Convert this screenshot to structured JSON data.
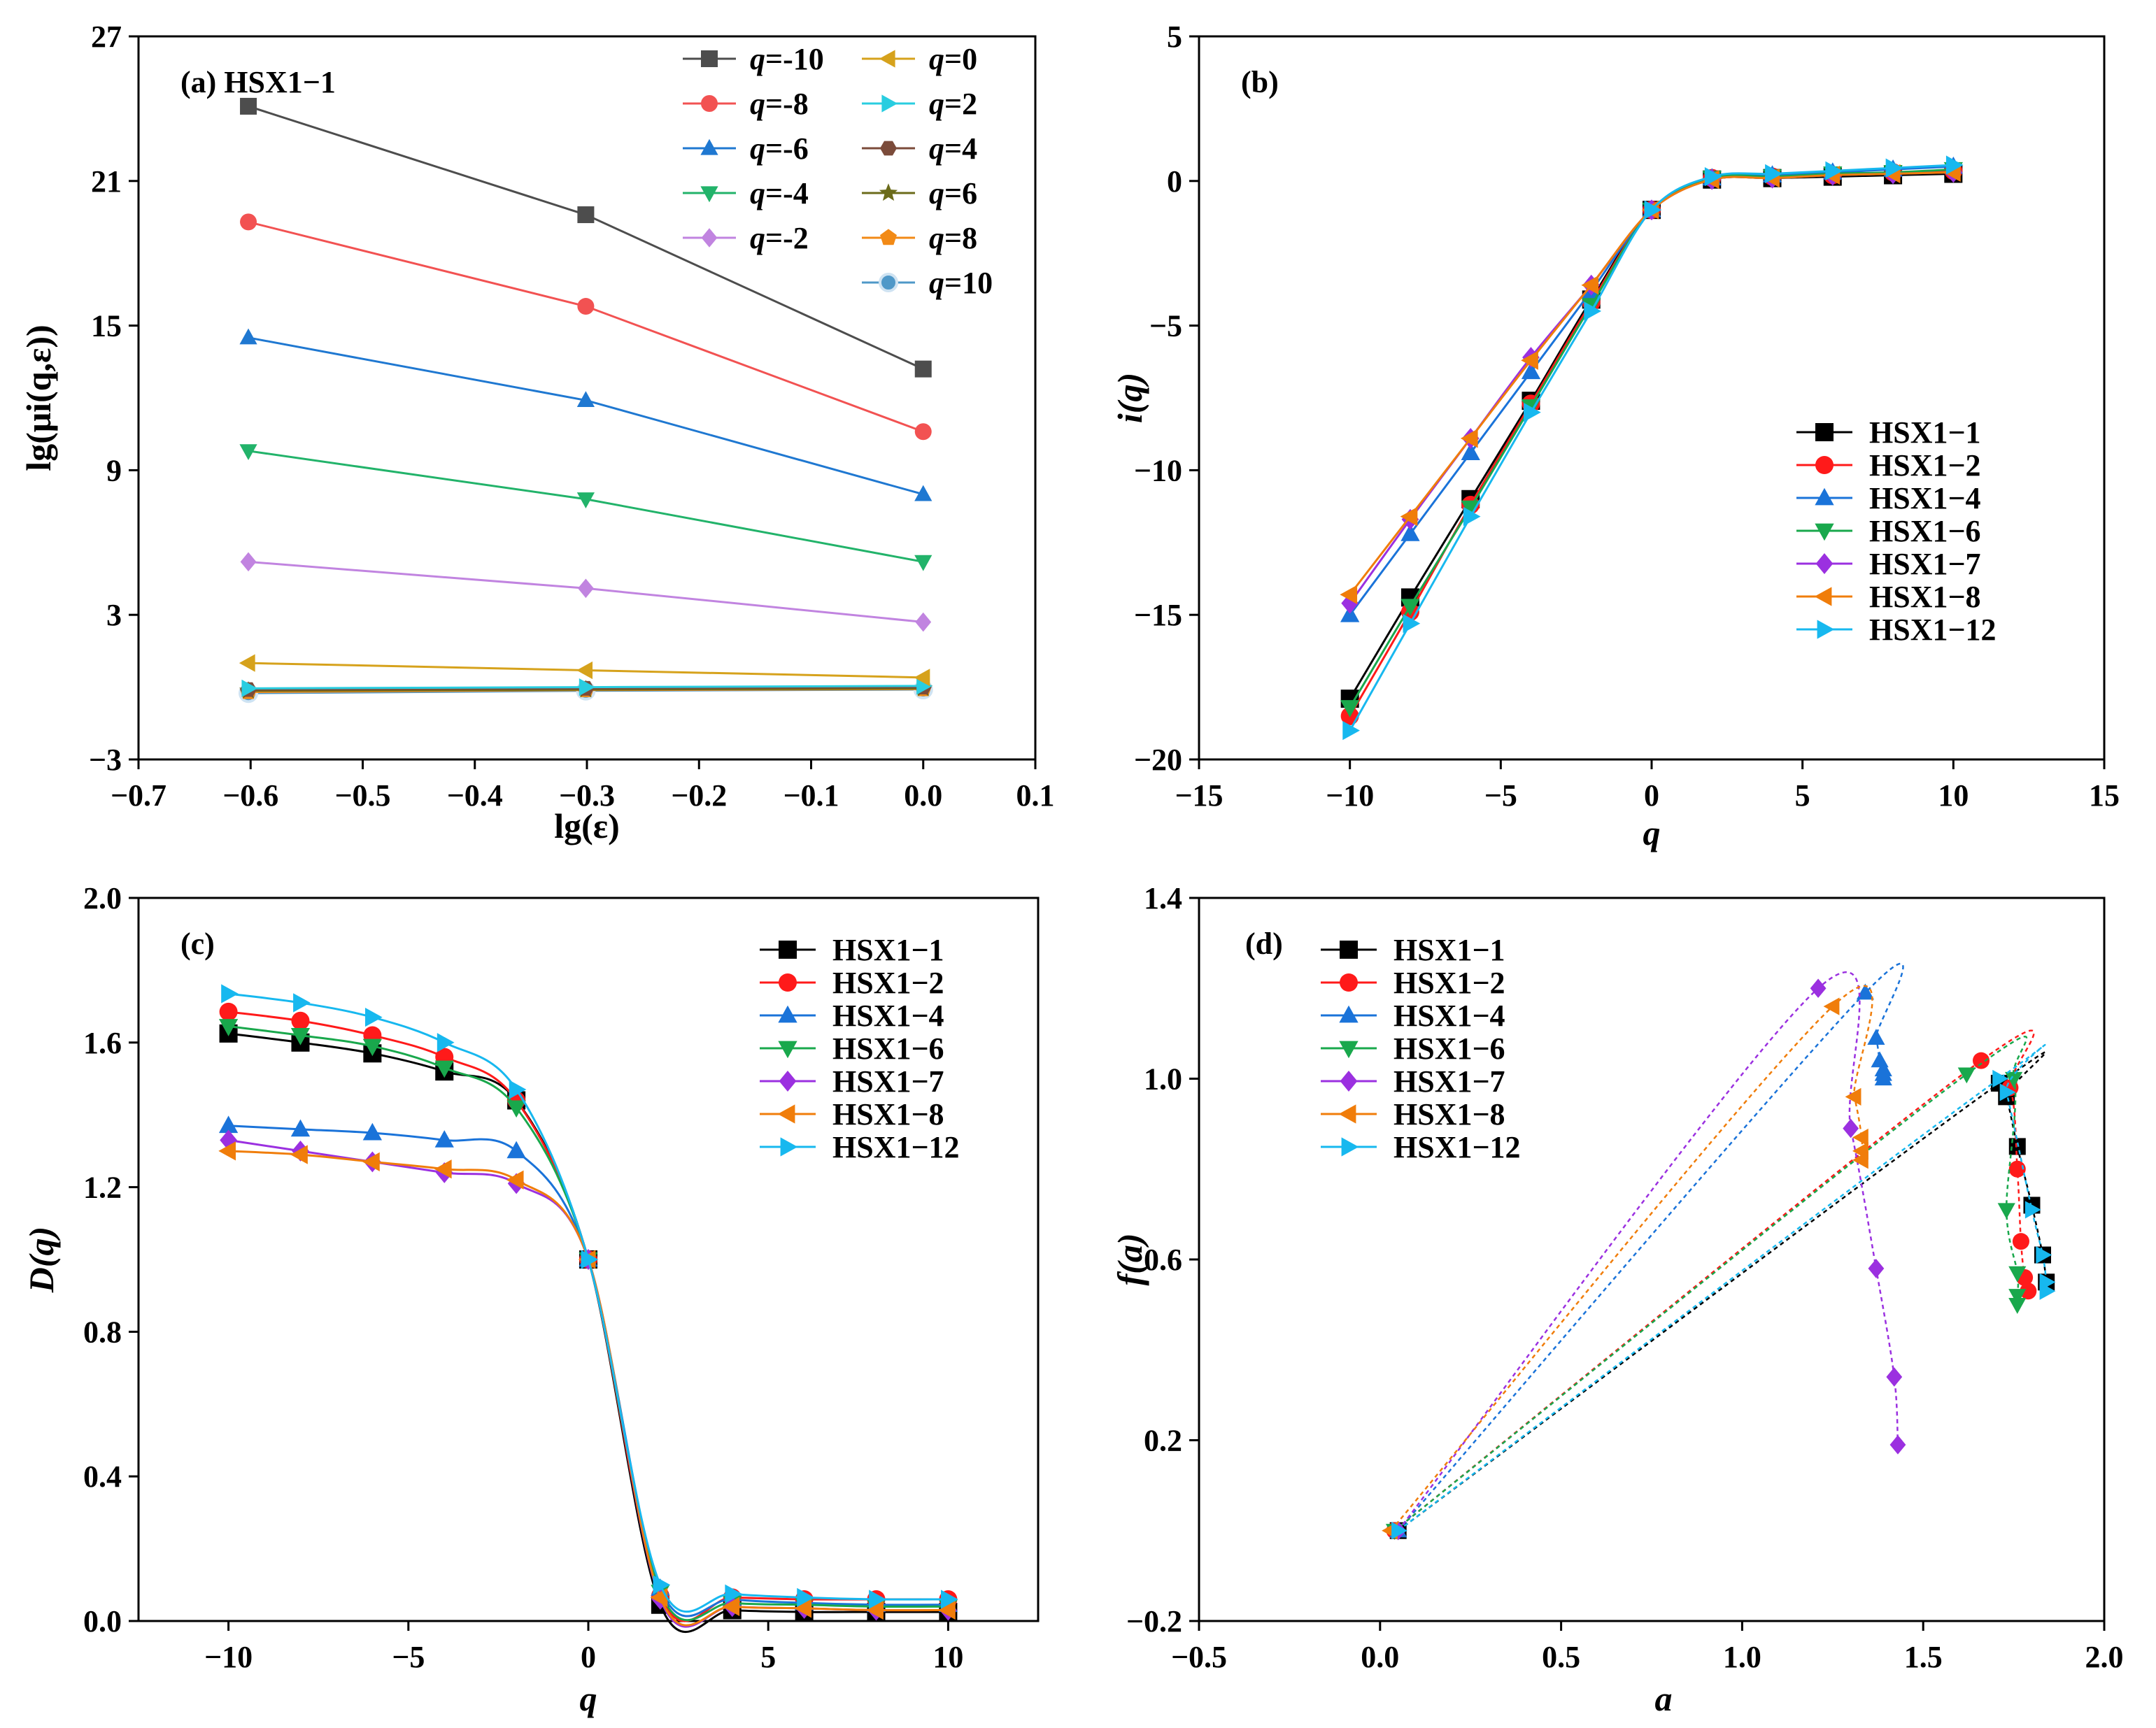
{
  "colors": {
    "HSX1-1": "#000000",
    "HSX1-2": "#ff1a1a",
    "HSX1-4": "#1a73d9",
    "HSX1-6": "#19a84c",
    "HSX1-7": "#9b30e0",
    "HSX1-8": "#f07d0a",
    "HSX1-12": "#17b8ef",
    "q-10": "#4d4d4d",
    "q-8": "#f25252",
    "q-6": "#1f78d1",
    "q-4": "#22b36a",
    "q-2": "#c184e0",
    "q0": "#d6a21c",
    "q2": "#29cde0",
    "q4": "#7b4b3a",
    "q6": "#6b6b1a",
    "q8": "#f28a16",
    "q10": "#4f98c8"
  },
  "chart_data": [
    {
      "id": "a",
      "type": "line",
      "panel_label": "(a) HSX1−1",
      "xlabel": "lg(ε)",
      "ylabel": "lg(μi(q,ε))",
      "xlim": [
        -0.7,
        0.1
      ],
      "ylim": [
        -3,
        27
      ],
      "xticks": [
        "−0.7",
        "−0.6",
        "−0.5",
        "−0.4",
        "−0.3",
        "−0.2",
        "−0.1",
        "0.0",
        "0.1"
      ],
      "yticks": [
        "−3",
        "3",
        "9",
        "15",
        "21",
        "27"
      ],
      "x": [
        -0.602,
        -0.301,
        0.0
      ],
      "series": [
        {
          "name": "q=-10",
          "label": "-10",
          "marker": "square",
          "color": "#4d4d4d",
          "values": [
            24.1,
            19.6,
            13.2
          ]
        },
        {
          "name": "q=-8",
          "label": "-8",
          "marker": "circle",
          "color": "#f25252",
          "values": [
            19.3,
            15.8,
            10.6
          ]
        },
        {
          "name": "q=-6",
          "label": "-6",
          "marker": "triangle-up",
          "color": "#1f78d1",
          "values": [
            14.5,
            11.9,
            8.0
          ]
        },
        {
          "name": "q=-4",
          "label": "-4",
          "marker": "triangle-down",
          "color": "#22b36a",
          "values": [
            9.8,
            7.8,
            5.2
          ]
        },
        {
          "name": "q=-2",
          "label": "-2",
          "marker": "diamond",
          "color": "#c184e0",
          "values": [
            5.2,
            4.1,
            2.7
          ]
        },
        {
          "name": "q=0",
          "label": "0",
          "marker": "triangle-left",
          "color": "#d6a21c",
          "values": [
            1.0,
            0.7,
            0.4
          ]
        },
        {
          "name": "q=2",
          "label": "2",
          "marker": "triangle-right",
          "color": "#29cde0",
          "values": [
            -0.05,
            0.0,
            0.05
          ]
        },
        {
          "name": "q=4",
          "label": "4",
          "marker": "hexagon",
          "color": "#7b4b3a",
          "values": [
            -0.1,
            -0.05,
            0.0
          ]
        },
        {
          "name": "q=6",
          "label": "6",
          "marker": "star",
          "color": "#6b6b1a",
          "values": [
            -0.15,
            -0.1,
            -0.05
          ]
        },
        {
          "name": "q=8",
          "label": "8",
          "marker": "pentagon",
          "color": "#f28a16",
          "values": [
            -0.2,
            -0.12,
            -0.08
          ]
        },
        {
          "name": "q=10",
          "label": "10",
          "marker": "sphere",
          "color": "#4f98c8",
          "values": [
            -0.25,
            -0.15,
            -0.1
          ]
        }
      ]
    },
    {
      "id": "b",
      "type": "line",
      "panel_label": "(b)",
      "xlabel": "q",
      "ylabel": "i(q)",
      "xlim": [
        -15,
        15
      ],
      "ylim": [
        -20,
        5
      ],
      "xticks": [
        "−15",
        "−10",
        "−5",
        "0",
        "5",
        "10",
        "15"
      ],
      "yticks": [
        "−20",
        "−15",
        "−10",
        "−5",
        "0",
        "5"
      ],
      "x": [
        -10,
        -8,
        -6,
        -4,
        -2,
        0,
        2,
        4,
        6,
        8,
        10
      ],
      "series": [
        {
          "name": "HSX1−1",
          "marker": "square",
          "color": "#000000",
          "values": [
            -17.9,
            -14.4,
            -11.0,
            -7.6,
            -4.1,
            -1.0,
            0.05,
            0.1,
            0.15,
            0.2,
            0.25
          ]
        },
        {
          "name": "HSX1−2",
          "marker": "circle",
          "color": "#ff1a1a",
          "values": [
            -18.5,
            -14.9,
            -11.2,
            -7.7,
            -4.2,
            -1.0,
            0.1,
            0.15,
            0.2,
            0.3,
            0.35
          ]
        },
        {
          "name": "HSX1−4",
          "marker": "triangle-up",
          "color": "#1a73d9",
          "values": [
            -15.0,
            -12.2,
            -9.4,
            -6.6,
            -3.8,
            -1.0,
            0.1,
            0.2,
            0.3,
            0.4,
            0.5
          ]
        },
        {
          "name": "HSX1−6",
          "marker": "triangle-down",
          "color": "#19a84c",
          "values": [
            -18.2,
            -14.7,
            -11.3,
            -7.8,
            -4.3,
            -1.0,
            0.1,
            0.15,
            0.25,
            0.3,
            0.4
          ]
        },
        {
          "name": "HSX1−7",
          "marker": "diamond",
          "color": "#9b30e0",
          "values": [
            -14.6,
            -11.7,
            -8.9,
            -6.1,
            -3.6,
            -1.0,
            0.05,
            0.1,
            0.2,
            0.25,
            0.3
          ]
        },
        {
          "name": "HSX1−8",
          "marker": "triangle-left",
          "color": "#f07d0a",
          "values": [
            -14.3,
            -11.6,
            -8.9,
            -6.2,
            -3.6,
            -1.0,
            0.05,
            0.1,
            0.2,
            0.25,
            0.3
          ]
        },
        {
          "name": "HSX1−12",
          "marker": "triangle-right",
          "color": "#17b8ef",
          "values": [
            -19.0,
            -15.3,
            -11.6,
            -8.0,
            -4.5,
            -1.0,
            0.15,
            0.25,
            0.35,
            0.45,
            0.55
          ]
        }
      ]
    },
    {
      "id": "c",
      "type": "line",
      "panel_label": "(c)",
      "xlabel": "q",
      "ylabel": "D(q)",
      "xlim": [
        -12.5,
        12.5
      ],
      "ylim": [
        0.0,
        2.0
      ],
      "xticks": [
        "−10",
        "−5",
        "0",
        "5",
        "10"
      ],
      "xtick_values": [
        -10,
        -5,
        0,
        5,
        10
      ],
      "yticks": [
        "0.0",
        "0.4",
        "0.8",
        "1.2",
        "1.6",
        "2.0"
      ],
      "x": [
        -10,
        -8,
        -6,
        -4,
        -2,
        0,
        2,
        4,
        6,
        8,
        10
      ],
      "series": [
        {
          "name": "HSX1−1",
          "marker": "square",
          "color": "#000000",
          "values": [
            1.625,
            1.6,
            1.57,
            1.52,
            1.44,
            1.0,
            0.045,
            0.03,
            0.025,
            0.025,
            0.025
          ]
        },
        {
          "name": "HSX1−2",
          "marker": "circle",
          "color": "#ff1a1a",
          "values": [
            1.685,
            1.66,
            1.62,
            1.56,
            1.44,
            1.0,
            0.07,
            0.065,
            0.06,
            0.06,
            0.06
          ]
        },
        {
          "name": "HSX1−4",
          "marker": "triangle-up",
          "color": "#1a73d9",
          "values": [
            1.37,
            1.36,
            1.35,
            1.33,
            1.3,
            1.0,
            0.09,
            0.06,
            0.05,
            0.045,
            0.045
          ]
        },
        {
          "name": "HSX1−6",
          "marker": "triangle-down",
          "color": "#19a84c",
          "values": [
            1.645,
            1.62,
            1.59,
            1.53,
            1.42,
            1.0,
            0.08,
            0.05,
            0.045,
            0.04,
            0.04
          ]
        },
        {
          "name": "HSX1−7",
          "marker": "diamond",
          "color": "#9b30e0",
          "values": [
            1.33,
            1.3,
            1.27,
            1.24,
            1.21,
            1.0,
            0.06,
            0.04,
            0.035,
            0.03,
            0.03
          ]
        },
        {
          "name": "HSX1−8",
          "marker": "triangle-left",
          "color": "#f07d0a",
          "values": [
            1.3,
            1.29,
            1.27,
            1.25,
            1.22,
            1.0,
            0.065,
            0.04,
            0.035,
            0.03,
            0.03
          ]
        },
        {
          "name": "HSX1−12",
          "marker": "triangle-right",
          "color": "#17b8ef",
          "values": [
            1.735,
            1.71,
            1.67,
            1.6,
            1.47,
            1.0,
            0.1,
            0.075,
            0.065,
            0.06,
            0.06
          ]
        }
      ]
    },
    {
      "id": "d",
      "type": "scatter",
      "panel_label": "(d)",
      "xlabel": "a",
      "ylabel": "f(a)",
      "xlim": [
        -0.5,
        2.0
      ],
      "ylim": [
        -0.2,
        1.4
      ],
      "xticks": [
        "−0.5",
        "0.0",
        "0.5",
        "1.0",
        "1.5",
        "2.0"
      ],
      "yticks": [
        "−0.2",
        "0.2",
        "0.6",
        "1.0",
        "1.4"
      ],
      "series": [
        {
          "name": "HSX1−1",
          "marker": "square",
          "color": "#000000",
          "a": [
            0.05,
            1.71,
            1.73,
            1.76,
            1.8,
            1.83,
            1.84
          ],
          "f": [
            0.0,
            0.99,
            0.96,
            0.85,
            0.72,
            0.61,
            0.55
          ]
        },
        {
          "name": "HSX1−2",
          "marker": "circle",
          "color": "#ff1a1a",
          "a": [
            0.04,
            1.66,
            1.74,
            1.76,
            1.77,
            1.78,
            1.79
          ],
          "f": [
            0.0,
            1.04,
            0.98,
            0.8,
            0.64,
            0.56,
            0.53
          ]
        },
        {
          "name": "HSX1−4",
          "marker": "triangle-up",
          "color": "#1a73d9",
          "a": [
            0.05,
            1.34,
            1.37,
            1.38,
            1.39,
            1.39,
            1.39
          ],
          "f": [
            0.0,
            1.19,
            1.09,
            1.04,
            1.02,
            1.01,
            1.0
          ]
        },
        {
          "name": "HSX1−6",
          "marker": "triangle-down",
          "color": "#19a84c",
          "a": [
            0.04,
            1.62,
            1.75,
            1.73,
            1.76,
            1.76,
            1.76
          ],
          "f": [
            0.0,
            1.01,
            1.0,
            0.71,
            0.57,
            0.52,
            0.5
          ]
        },
        {
          "name": "HSX1−7",
          "marker": "diamond",
          "color": "#9b30e0",
          "a": [
            0.05,
            1.21,
            1.3,
            1.37,
            1.42,
            1.43
          ],
          "f": [
            0.0,
            1.2,
            0.89,
            0.58,
            0.34,
            0.19
          ]
        },
        {
          "name": "HSX1−8",
          "marker": "triangle-left",
          "color": "#f07d0a",
          "a": [
            0.03,
            1.25,
            1.31,
            1.33,
            1.33,
            1.33
          ],
          "f": [
            0.0,
            1.16,
            0.96,
            0.87,
            0.84,
            0.82
          ]
        },
        {
          "name": "HSX1−12",
          "marker": "triangle-right",
          "color": "#17b8ef",
          "a": [
            0.05,
            1.71,
            1.73,
            1.8,
            1.83,
            1.84,
            1.84
          ],
          "f": [
            0.0,
            1.0,
            0.97,
            0.71,
            0.61,
            0.55,
            0.53
          ]
        }
      ]
    }
  ]
}
